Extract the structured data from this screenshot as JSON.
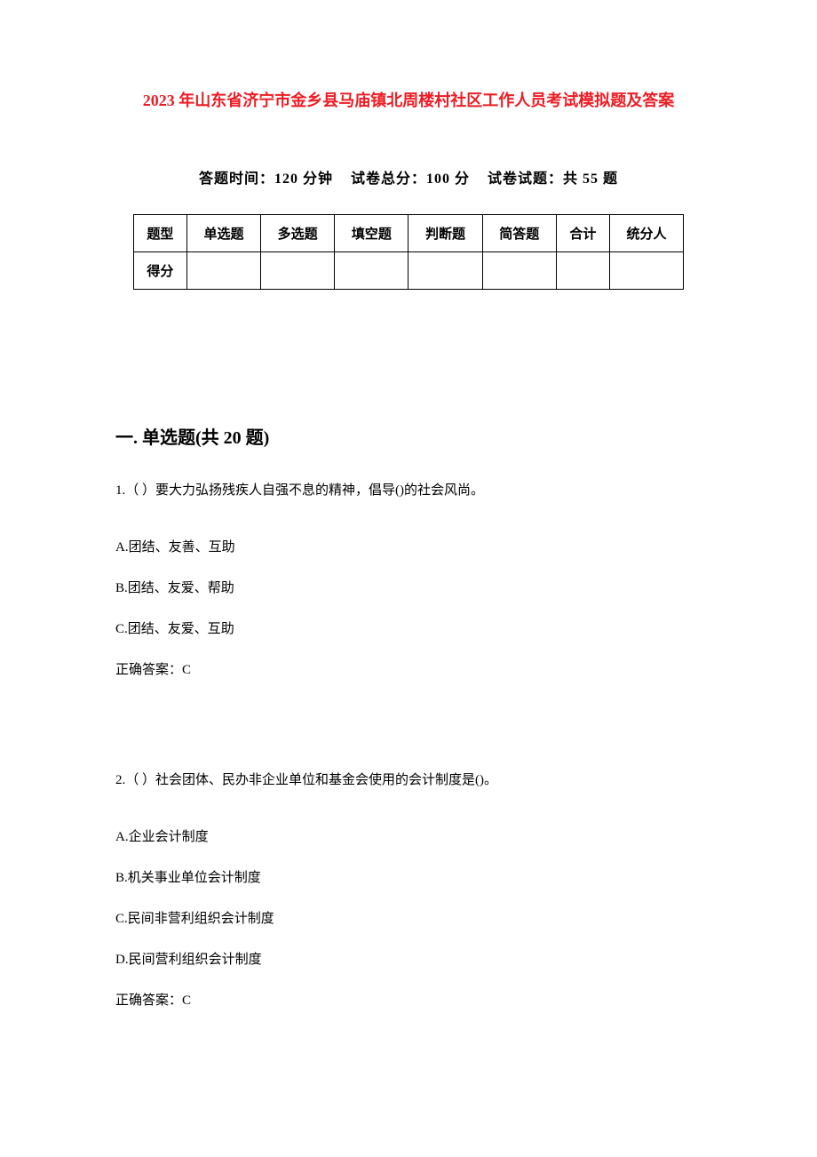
{
  "title": "2023 年山东省济宁市金乡县马庙镇北周楼村社区工作人员考试模拟题及答案",
  "exam_info": {
    "time_label": "答题时间：",
    "time_value": "120 分钟",
    "total_label": "试卷总分：",
    "total_value": "100 分",
    "questions_label": "试卷试题：",
    "questions_value": "共 55 题"
  },
  "table": {
    "headers": [
      "题型",
      "单选题",
      "多选题",
      "填空题",
      "判断题",
      "简答题",
      "合计",
      "统分人"
    ],
    "score_label": "得分"
  },
  "section_heading": "一. 单选题(共 20 题)",
  "questions": [
    {
      "number": "1.（ ）要大力弘扬残疾人自强不息的精神，倡导()的社会风尚。",
      "options": [
        "A.团结、友善、互助",
        "B.团结、友爱、帮助",
        "C.团结、友爱、互助"
      ],
      "answer": "正确答案：C"
    },
    {
      "number": "2.（ ）社会团体、民办非企业单位和基金会使用的会计制度是()。",
      "options": [
        "A.企业会计制度",
        "B.机关事业单位会计制度",
        "C.民间非营利组织会计制度",
        "D.民间营利组织会计制度"
      ],
      "answer": "正确答案：C"
    }
  ],
  "colors": {
    "title_color": "#ed1c24",
    "text_color": "#000000",
    "background_color": "#ffffff",
    "border_color": "#000000"
  },
  "typography": {
    "title_fontsize": 18,
    "info_fontsize": 16,
    "heading_fontsize": 20,
    "body_fontsize": 15
  }
}
